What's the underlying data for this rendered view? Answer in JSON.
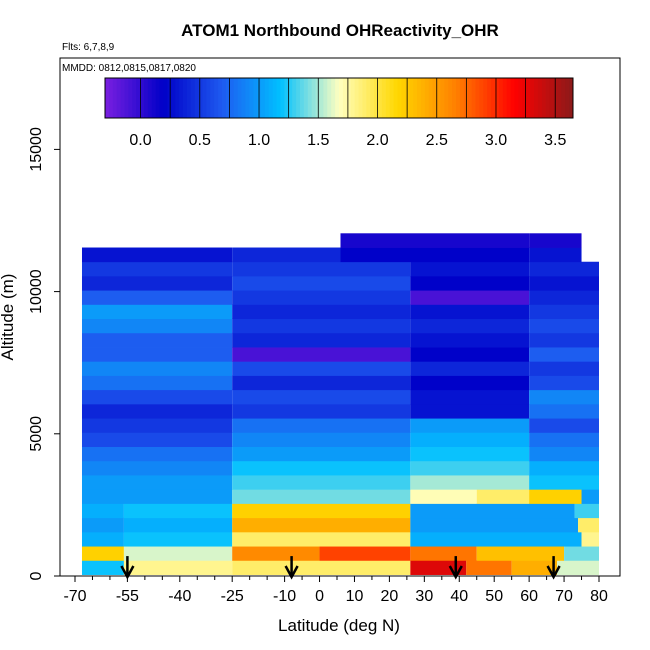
{
  "chart_data": {
    "type": "heatmap",
    "title": "ATOM1 Northbound OHReactivity_OHR",
    "subtitle_flights": "Flts: 6,7,8,9",
    "subtitle_dates": "MMDD: 0812,0815,0817,0820",
    "xlabel": "Latitude (deg N)",
    "ylabel": "Altitude (m)",
    "xlim": [
      -70,
      82
    ],
    "ylim": [
      0,
      17500
    ],
    "x_ticks": [
      -70,
      -55,
      -40,
      -25,
      -10,
      0,
      10,
      20,
      30,
      40,
      50,
      60,
      70,
      80
    ],
    "x_tick_labels": [
      "-70",
      "-55",
      "-40",
      "-25",
      "-10",
      "0",
      "10",
      "20",
      "30",
      "40",
      "50",
      "60",
      "70",
      "80"
    ],
    "y_ticks": [
      0,
      5000,
      10000,
      15000
    ],
    "y_tick_labels": [
      "0",
      "5000",
      "10000",
      "15000"
    ],
    "colorbar": {
      "range": [
        -0.3,
        3.65
      ],
      "ticks": [
        0,
        0.5,
        1,
        1.5,
        2,
        2.5,
        3,
        3.5
      ],
      "tick_labels": [
        "0.0",
        "0.5",
        "1.0",
        "1.5",
        "2.0",
        "2.5",
        "3.0",
        "3.5"
      ],
      "colors": [
        "#7a1fe0",
        "#0000c8",
        "#1e5af0",
        "#00c0ff",
        "#ffffc0",
        "#ffd700",
        "#ff7f00",
        "#ff0000",
        "#8b1a1a"
      ]
    },
    "arrows_latitude": [
      -55,
      -8,
      39,
      67
    ],
    "profile_bands": [
      {
        "alt": 300,
        "segments": [
          [
            -68,
            -56,
            1.2
          ],
          [
            -56,
            -25,
            1.8
          ],
          [
            -25,
            26,
            1.9
          ],
          [
            26,
            42,
            3.3
          ],
          [
            42,
            55,
            2.7
          ],
          [
            55,
            68,
            2.4
          ],
          [
            68,
            80,
            1.6
          ]
        ]
      },
      {
        "alt": 800,
        "segments": [
          [
            -68,
            -56,
            2.2
          ],
          [
            -56,
            -25,
            1.6
          ],
          [
            -25,
            0,
            2.6
          ],
          [
            0,
            26,
            2.9
          ],
          [
            26,
            45,
            2.7
          ],
          [
            45,
            70,
            2.3
          ],
          [
            70,
            80,
            1.4
          ]
        ]
      },
      {
        "alt": 1300,
        "segments": [
          [
            -68,
            -56,
            1.1
          ],
          [
            -56,
            -25,
            1.2
          ],
          [
            -25,
            26,
            1.9
          ],
          [
            26,
            75,
            1.1
          ],
          [
            75,
            80,
            1.8
          ]
        ]
      },
      {
        "alt": 1800,
        "segments": [
          [
            -68,
            -56,
            1.0
          ],
          [
            -56,
            -25,
            1.1
          ],
          [
            -25,
            26,
            2.4
          ],
          [
            26,
            74,
            1.0
          ],
          [
            74,
            80,
            1.9
          ]
        ]
      },
      {
        "alt": 2300,
        "segments": [
          [
            -68,
            -56,
            1.1
          ],
          [
            -56,
            -25,
            1.2
          ],
          [
            -25,
            26,
            2.2
          ],
          [
            26,
            73,
            1.0
          ],
          [
            73,
            80,
            1.3
          ]
        ]
      },
      {
        "alt": 2800,
        "segments": [
          [
            -68,
            -25,
            1.0
          ],
          [
            -25,
            26,
            1.4
          ],
          [
            26,
            45,
            1.7
          ],
          [
            45,
            60,
            1.9
          ],
          [
            60,
            75,
            2.2
          ],
          [
            75,
            80,
            1.0
          ]
        ]
      },
      {
        "alt": 3300,
        "segments": [
          [
            -68,
            -25,
            1.0
          ],
          [
            -25,
            26,
            1.3
          ],
          [
            26,
            60,
            1.5
          ],
          [
            60,
            80,
            1.2
          ]
        ]
      },
      {
        "alt": 3800,
        "segments": [
          [
            -68,
            -25,
            0.9
          ],
          [
            -25,
            26,
            1.2
          ],
          [
            26,
            60,
            1.3
          ],
          [
            60,
            80,
            1.1
          ]
        ]
      },
      {
        "alt": 4300,
        "segments": [
          [
            -68,
            -25,
            0.8
          ],
          [
            -25,
            26,
            1.0
          ],
          [
            26,
            60,
            1.2
          ],
          [
            60,
            80,
            0.9
          ]
        ]
      },
      {
        "alt": 4800,
        "segments": [
          [
            -68,
            -25,
            0.6
          ],
          [
            -25,
            26,
            0.9
          ],
          [
            26,
            60,
            1.1
          ],
          [
            60,
            80,
            0.8
          ]
        ]
      },
      {
        "alt": 5300,
        "segments": [
          [
            -68,
            -25,
            0.5
          ],
          [
            -25,
            26,
            0.8
          ],
          [
            26,
            60,
            1.0
          ],
          [
            60,
            80,
            0.6
          ]
        ]
      },
      {
        "alt": 5800,
        "segments": [
          [
            -68,
            -25,
            0.4
          ],
          [
            -25,
            26,
            0.5
          ],
          [
            26,
            60,
            0.3
          ],
          [
            60,
            80,
            0.8
          ]
        ]
      },
      {
        "alt": 6300,
        "segments": [
          [
            -68,
            -25,
            0.6
          ],
          [
            -25,
            26,
            0.6
          ],
          [
            26,
            60,
            0.3
          ],
          [
            60,
            80,
            0.9
          ]
        ]
      },
      {
        "alt": 6800,
        "segments": [
          [
            -68,
            -25,
            0.8
          ],
          [
            -25,
            26,
            0.4
          ],
          [
            26,
            60,
            0.2
          ],
          [
            60,
            80,
            0.6
          ]
        ]
      },
      {
        "alt": 7300,
        "segments": [
          [
            -68,
            -25,
            0.9
          ],
          [
            -25,
            26,
            0.6
          ],
          [
            26,
            60,
            0.4
          ],
          [
            60,
            80,
            0.5
          ]
        ]
      },
      {
        "alt": 7800,
        "segments": [
          [
            -68,
            -25,
            0.7
          ],
          [
            -25,
            26,
            -0.1
          ],
          [
            26,
            60,
            0.2
          ],
          [
            60,
            80,
            0.7
          ]
        ]
      },
      {
        "alt": 8300,
        "segments": [
          [
            -68,
            -25,
            0.7
          ],
          [
            -25,
            26,
            0.4
          ],
          [
            26,
            60,
            0.3
          ],
          [
            60,
            80,
            0.5
          ]
        ]
      },
      {
        "alt": 8800,
        "segments": [
          [
            -68,
            -25,
            0.9
          ],
          [
            -25,
            26,
            0.5
          ],
          [
            26,
            60,
            0.4
          ],
          [
            60,
            80,
            0.6
          ]
        ]
      },
      {
        "alt": 9300,
        "segments": [
          [
            -68,
            -25,
            1.0
          ],
          [
            -25,
            26,
            0.4
          ],
          [
            26,
            60,
            0.3
          ],
          [
            60,
            80,
            0.5
          ]
        ]
      },
      {
        "alt": 9800,
        "segments": [
          [
            -68,
            -25,
            0.7
          ],
          [
            -25,
            26,
            0.5
          ],
          [
            26,
            60,
            -0.1
          ],
          [
            60,
            80,
            0.4
          ]
        ]
      },
      {
        "alt": 10300,
        "segments": [
          [
            -68,
            -25,
            0.4
          ],
          [
            -25,
            26,
            0.6
          ],
          [
            26,
            60,
            0.2
          ],
          [
            60,
            80,
            0.3
          ]
        ]
      },
      {
        "alt": 10800,
        "segments": [
          [
            -68,
            -25,
            0.5
          ],
          [
            -25,
            26,
            0.5
          ],
          [
            26,
            60,
            0.3
          ],
          [
            60,
            80,
            0.4
          ]
        ]
      },
      {
        "alt": 11300,
        "segments": [
          [
            -68,
            -25,
            0.3
          ],
          [
            -25,
            6,
            0.4
          ],
          [
            6,
            60,
            0.2
          ],
          [
            60,
            75,
            0.3
          ]
        ]
      },
      {
        "alt": 11800,
        "segments": [
          [
            6,
            60,
            0.1
          ],
          [
            60,
            75,
            0.1
          ]
        ]
      }
    ]
  }
}
